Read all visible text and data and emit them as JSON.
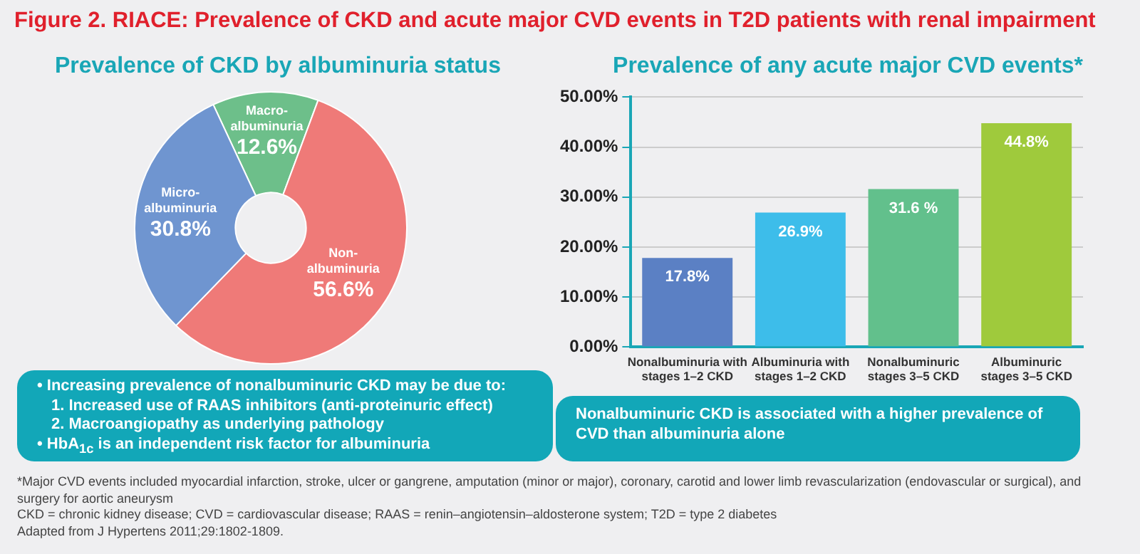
{
  "chart_data": [
    {
      "type": "donut",
      "title": "Figure 2. RIACE: Prevalence of CKD and acute major CVD events in T2D patients with renal impairment",
      "subtitle": "Prevalence of CKD by albuminuria status",
      "categories": [
        "Macro-albuminuria",
        "Non-albuminuria",
        "Micro-albuminuria"
      ],
      "values": [
        12.6,
        56.6,
        30.8
      ],
      "colors": [
        "#6dbf8a",
        "#ef7a78",
        "#6f95d0"
      ],
      "value_labels": [
        "12.6%",
        "56.6%",
        "30.8%"
      ],
      "annotations": [
        "• Increasing prevalence of nonalbuminuric CKD may be due to:",
        "1. Increased use of RAAS inhibitors (anti-proteinuric effect)",
        "2. Macroangiopathy as underlying pathology",
        "• HbA$_{1c}$ is an independent risk factor for albuminuria"
      ]
    },
    {
      "type": "bar",
      "title": "Prevalence of any acute major CVD events*",
      "categories": [
        "Nonalbuminuria with stages 1–2 CKD",
        "Albuminuria with stages 1–2 CKD",
        "Nonalbuminuric stages 3–5 CKD",
        "Albuminuric stages 3–5 CKD"
      ],
      "values": [
        17.8,
        26.9,
        31.6,
        44.8
      ],
      "colors": [
        "#5b80c4",
        "#3dbdea",
        "#62c08c",
        "#9fca3c"
      ],
      "value_labels": [
        "17.8%",
        "26.9%",
        "31.6 %",
        "44.8%"
      ],
      "ylim": [
        0,
        50
      ],
      "yticks": [
        {
          "value": 0,
          "label": "0.00%"
        },
        {
          "value": 10,
          "label": "10.00%"
        },
        {
          "value": 20,
          "label": "20.00%"
        },
        {
          "value": 30,
          "label": "30.00%"
        },
        {
          "value": 40,
          "label": "40.00%"
        },
        {
          "value": 50,
          "label": "50.00%"
        }
      ],
      "grid": "y",
      "annotations": [
        "Nonalbuminuric CKD is associated with a higher prevalence of CVD than albuminuria alone",
        "*Major CVD events included myocardial infarction, stroke, ulcer or gangrene, amputation (minor or major), coronary, carotid and lower limb revascularization (endovascular or surgical), and surgery for aortic aneurysm",
        "CKD = chronic kidney disease; CVD = cardiovascular disease; RAAS = renin–angiotensin–aldosterone system; T2D = type 2 diabetes",
        "Adapted from J Hypertens 2011;29:1802-1809."
      ]
    }
  ]
}
